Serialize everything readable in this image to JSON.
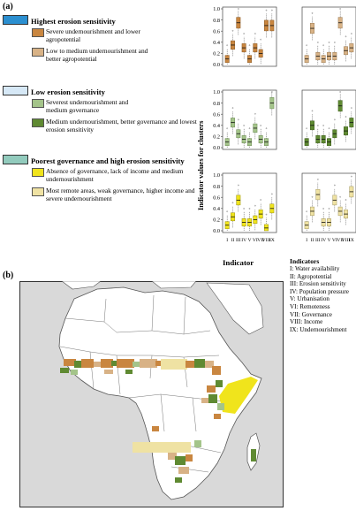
{
  "panel_a_label": "(a)",
  "panel_b_label": "(b)",
  "legend": {
    "groups": [
      {
        "title": "Highest erosion sensitivity",
        "color": "#2b8fd0",
        "items": [
          {
            "text": "Severe undernourishment and lower agropotential",
            "color": "#c98640"
          },
          {
            "text": "Low to medium undernourishment and better agropotential",
            "color": "#d8b286"
          }
        ]
      },
      {
        "title": "Low erosion sensitivity",
        "color": "#d6e8f6",
        "items": [
          {
            "text": "Severest undernourishment and medium governance",
            "color": "#a4c48a"
          },
          {
            "text": "Medium undernourishment, better governance and lowest erosion sensitivity",
            "color": "#5f8a32"
          }
        ]
      },
      {
        "title": "Poorest governance and high erosion sensitivity",
        "color": "#92cbbd",
        "items": [
          {
            "text": "Absence of governance, lack of income and medium undernourishment",
            "color": "#f0e41c"
          },
          {
            "text": "Most remote areas, weak governance, higher income and severe undernourishment",
            "color": "#efe2a3"
          }
        ]
      }
    ]
  },
  "chart_data": {
    "type": "box",
    "ylabel": "Indicator values for clusters",
    "xlabel": "Indicator",
    "yticks": [
      "0.0",
      "0.2",
      "0.4",
      "0.6",
      "0.8",
      "1.0"
    ],
    "ylim": [
      0,
      1
    ],
    "x_tick_labels": [
      "I",
      "II",
      "III",
      "IV",
      "V",
      "VI",
      "VII",
      "VIII",
      "IX"
    ],
    "panels": [
      {
        "row": 0,
        "col": 0,
        "fill": "#c98640",
        "edge": "#8a5a25",
        "medians": [
          0.1,
          0.35,
          0.75,
          0.3,
          0.1,
          0.3,
          0.2,
          0.7,
          0.7
        ]
      },
      {
        "row": 0,
        "col": 1,
        "fill": "#d8b286",
        "edge": "#9c7b53",
        "medians": [
          0.1,
          0.65,
          0.15,
          0.1,
          0.15,
          0.15,
          0.75,
          0.25,
          0.3
        ]
      },
      {
        "row": 1,
        "col": 0,
        "fill": "#a4c48a",
        "edge": "#6b8a52",
        "medians": [
          0.1,
          0.45,
          0.25,
          0.15,
          0.1,
          0.35,
          0.15,
          0.1,
          0.8
        ]
      },
      {
        "row": 1,
        "col": 1,
        "fill": "#5f8a32",
        "edge": "#3d5d1b",
        "medians": [
          0.1,
          0.4,
          0.15,
          0.15,
          0.1,
          0.25,
          0.75,
          0.3,
          0.45
        ]
      },
      {
        "row": 2,
        "col": 0,
        "fill": "#f0e41c",
        "edge": "#9b9212",
        "medians": [
          0.1,
          0.25,
          0.55,
          0.15,
          0.15,
          0.2,
          0.3,
          0.05,
          0.4
        ]
      },
      {
        "row": 2,
        "col": 1,
        "fill": "#efe2a3",
        "edge": "#a59a64",
        "medians": [
          0.1,
          0.35,
          0.65,
          0.15,
          0.15,
          0.55,
          0.35,
          0.3,
          0.7
        ]
      }
    ]
  },
  "indicators": {
    "title": "Indicators",
    "items": [
      "I: Water availability",
      "II: Agropotential",
      "III: Erosion sensitivity",
      "IV: Population pressure",
      "V: Urbanisation",
      "VI: Remoteness",
      "VII: Governance",
      "VIII: Income",
      "IX: Undernourishment"
    ]
  }
}
